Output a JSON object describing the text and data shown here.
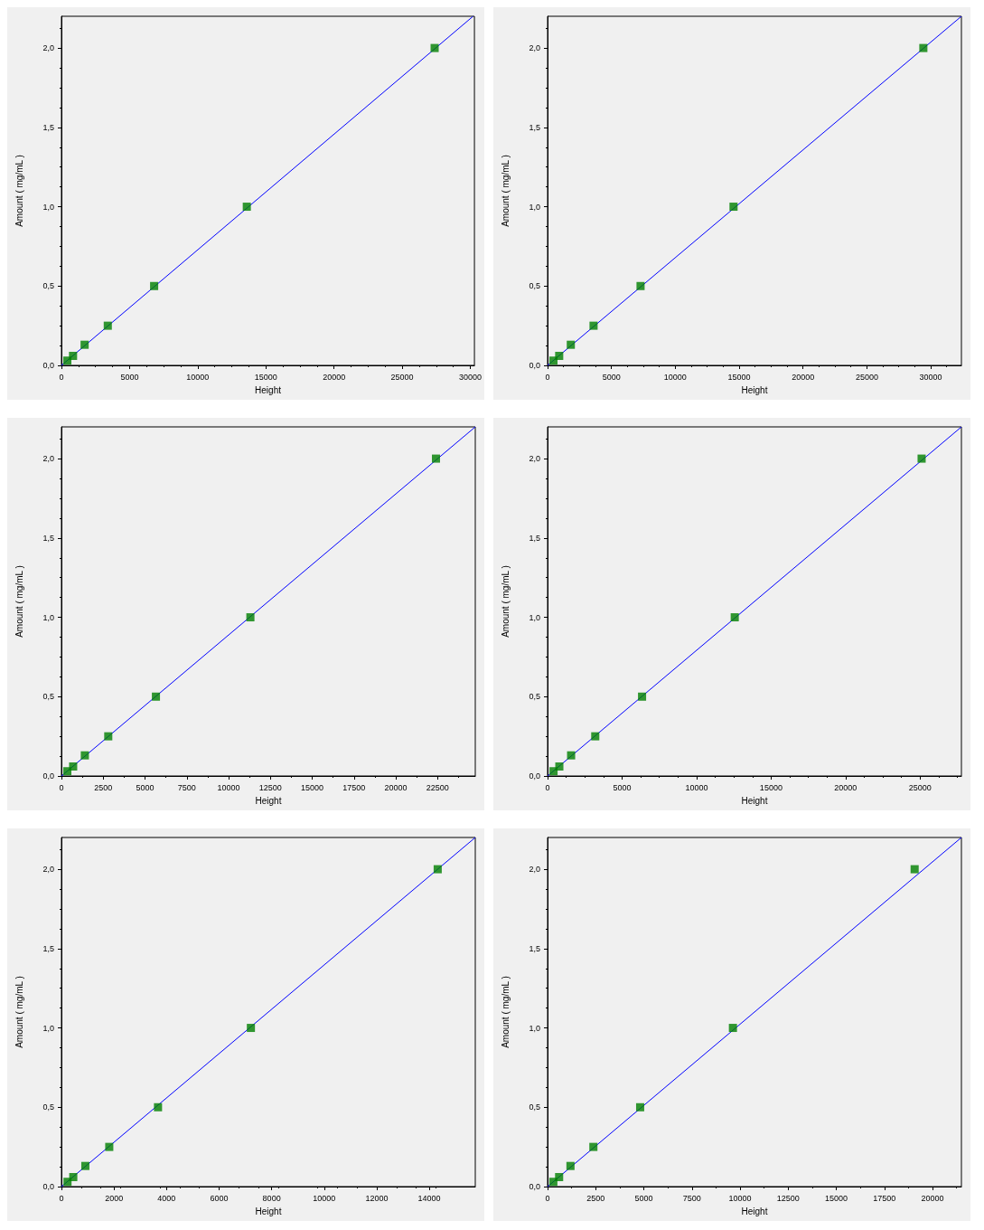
{
  "chart_data": [
    {
      "type": "scatter",
      "xlabel": "Height",
      "ylabel": "Amount ( mg/mL )",
      "xlim": [
        0,
        30300
      ],
      "ylim": [
        0,
        2.2
      ],
      "xticks": [
        0,
        5000,
        10000,
        15000,
        20000,
        25000,
        30000
      ],
      "yticks": [
        {
          "value": 0,
          "label": "0,0"
        },
        {
          "value": 0.5,
          "label": "0,5"
        },
        {
          "value": 1,
          "label": "1,0"
        },
        {
          "value": 1.5,
          "label": "1,5"
        },
        {
          "value": 2,
          "label": "2,0"
        }
      ],
      "grid": false,
      "series": [
        {
          "type": "line",
          "color": "#0000ff",
          "marker": "none",
          "x": [
            0,
            30200
          ],
          "values": [
            0,
            2.2
          ]
        },
        {
          "color": "#008000",
          "marker": "square",
          "x": [
            430,
            850,
            1700,
            3400,
            6800,
            13600,
            27380
          ],
          "values": [
            0.03,
            0.06,
            0.13,
            0.25,
            0.5,
            1,
            2
          ]
        }
      ]
    },
    {
      "type": "scatter",
      "xlabel": "Height",
      "ylabel": "Amount ( mg/mL )",
      "xlim": [
        0,
        32400
      ],
      "ylim": [
        0,
        2.2
      ],
      "xticks": [
        0,
        5000,
        10000,
        15000,
        20000,
        25000,
        30000
      ],
      "yticks": [
        {
          "value": 0,
          "label": "0,0"
        },
        {
          "value": 0.5,
          "label": "0,5"
        },
        {
          "value": 1,
          "label": "1,0"
        },
        {
          "value": 1.5,
          "label": "1,5"
        },
        {
          "value": 2,
          "label": "2,0"
        }
      ],
      "grid": false,
      "series": [
        {
          "type": "line",
          "color": "#0000ff",
          "marker": "none",
          "x": [
            0,
            32400
          ],
          "values": [
            0,
            2.2
          ]
        },
        {
          "color": "#008000",
          "marker": "square",
          "x": [
            460,
            910,
            1820,
            3600,
            7280,
            14560,
            29420
          ],
          "values": [
            0.03,
            0.06,
            0.13,
            0.25,
            0.5,
            1,
            2
          ]
        }
      ]
    },
    {
      "type": "scatter",
      "xlabel": "Height",
      "ylabel": "Amount ( mg/mL )",
      "xlim": [
        0,
        24750
      ],
      "ylim": [
        0,
        2.2
      ],
      "xticks": [
        0,
        2500,
        5000,
        7500,
        10000,
        12500,
        15000,
        17500,
        20000,
        22500
      ],
      "yticks": [
        {
          "value": 0,
          "label": "0,0"
        },
        {
          "value": 0.5,
          "label": "0,5"
        },
        {
          "value": 1,
          "label": "1,0"
        },
        {
          "value": 1.5,
          "label": "1,5"
        },
        {
          "value": 2,
          "label": "2,0"
        }
      ],
      "grid": false,
      "series": [
        {
          "type": "line",
          "color": "#0000ff",
          "marker": "none",
          "x": [
            0,
            24750
          ],
          "values": [
            0,
            2.2
          ]
        },
        {
          "color": "#008000",
          "marker": "square",
          "x": [
            350,
            700,
            1400,
            2800,
            5650,
            11300,
            22400
          ],
          "values": [
            0.03,
            0.06,
            0.13,
            0.25,
            0.5,
            1,
            2
          ]
        }
      ]
    },
    {
      "type": "scatter",
      "xlabel": "Height",
      "ylabel": "Amount ( mg/mL )",
      "xlim": [
        0,
        27770
      ],
      "ylim": [
        0,
        2.2
      ],
      "xticks": [
        0,
        5000,
        10000,
        15000,
        20000,
        25000
      ],
      "yticks": [
        {
          "value": 0,
          "label": "0,0"
        },
        {
          "value": 0.5,
          "label": "0,5"
        },
        {
          "value": 1,
          "label": "1,0"
        },
        {
          "value": 1.5,
          "label": "1,5"
        },
        {
          "value": 2,
          "label": "2,0"
        }
      ],
      "grid": false,
      "series": [
        {
          "type": "line",
          "color": "#0000ff",
          "marker": "none",
          "x": [
            0,
            27770
          ],
          "values": [
            0,
            2.2
          ]
        },
        {
          "color": "#008000",
          "marker": "square",
          "x": [
            400,
            790,
            1580,
            3200,
            6340,
            12560,
            25100
          ],
          "values": [
            0.03,
            0.06,
            0.13,
            0.25,
            0.5,
            1,
            2
          ]
        }
      ]
    },
    {
      "type": "scatter",
      "xlabel": "Height",
      "ylabel": "Amount ( mg/mL )",
      "xlim": [
        0,
        15750
      ],
      "ylim": [
        0,
        2.2
      ],
      "xticks": [
        0,
        2000,
        4000,
        6000,
        8000,
        10000,
        12000,
        14000
      ],
      "yticks": [
        {
          "value": 0,
          "label": "0,0"
        },
        {
          "value": 0.5,
          "label": "0,5"
        },
        {
          "value": 1,
          "label": "1,0"
        },
        {
          "value": 1.5,
          "label": "1,5"
        },
        {
          "value": 2,
          "label": "2,0"
        }
      ],
      "grid": false,
      "series": [
        {
          "type": "line",
          "color": "#0000ff",
          "marker": "none",
          "x": [
            0,
            15750
          ],
          "values": [
            0,
            2.2
          ]
        },
        {
          "color": "#008000",
          "marker": "square",
          "x": [
            230,
            450,
            910,
            1820,
            3675,
            7210,
            14320
          ],
          "values": [
            0.03,
            0.06,
            0.13,
            0.25,
            0.5,
            1,
            2
          ]
        }
      ]
    },
    {
      "type": "scatter",
      "xlabel": "Height",
      "ylabel": "Amount ( mg/mL )",
      "xlim": [
        0,
        21500
      ],
      "ylim": [
        0,
        2.2
      ],
      "xticks": [
        0,
        2500,
        5000,
        7500,
        10000,
        12500,
        15000,
        17500,
        20000
      ],
      "yticks": [
        {
          "value": 0,
          "label": "0,0"
        },
        {
          "value": 0.5,
          "label": "0,5"
        },
        {
          "value": 1,
          "label": "1,0"
        },
        {
          "value": 1.5,
          "label": "1,5"
        },
        {
          "value": 2,
          "label": "2,0"
        }
      ],
      "grid": false,
      "series": [
        {
          "type": "line",
          "color": "#0000ff",
          "marker": "none",
          "x": [
            0,
            21500
          ],
          "values": [
            0,
            2.2
          ]
        },
        {
          "color": "#008000",
          "marker": "square",
          "x": [
            300,
            600,
            1190,
            2380,
            4810,
            9630,
            19070
          ],
          "values": [
            0.03,
            0.06,
            0.13,
            0.25,
            0.5,
            1,
            2
          ]
        }
      ]
    }
  ]
}
